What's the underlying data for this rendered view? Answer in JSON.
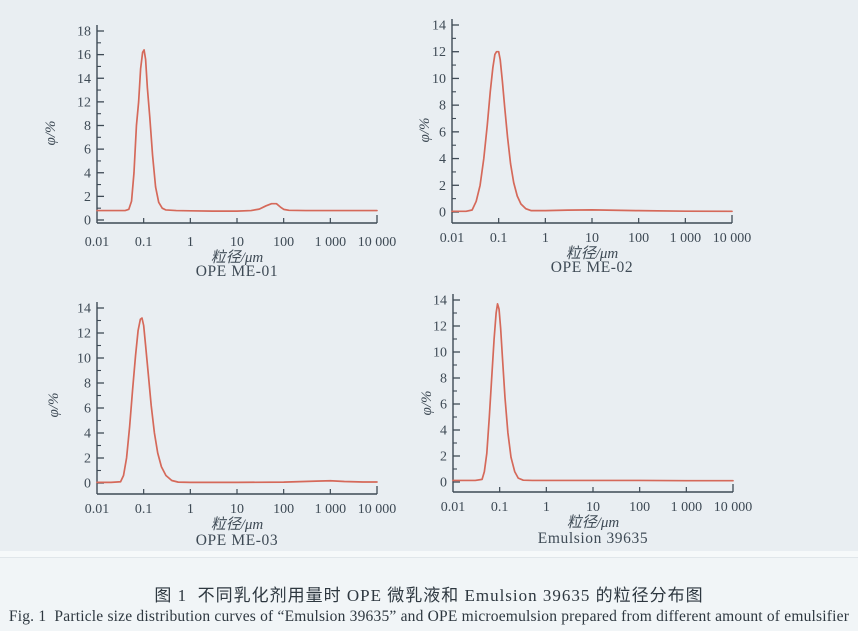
{
  "page": {
    "background": "#e9eef2",
    "ink_color": "#3e4a55",
    "curve_color": "#d5695a",
    "caption_zh": "图 1  不同乳化剂用量时 OPE 微乳液和 Emulsion 39635 的粒径分布图",
    "caption_en": "Fig. 1  Particle size distribution curves of “Emulsion 39635” and OPE microemulsion prepared from different amount of emulsifier"
  },
  "chart_data": [
    {
      "type": "line",
      "title": "OPE ME-01",
      "xlabel": "粒径/μm",
      "ylabel": "φ/%",
      "x_scale": "log",
      "xlim": [
        0.01,
        10000
      ],
      "x_tick_labels": [
        "0.01",
        "0.1",
        "1",
        "10",
        "100",
        "1 000",
        "10 000"
      ],
      "y_tick_labels": [
        "0",
        "2",
        "4",
        "6",
        "8",
        "12",
        "14",
        "16",
        "18"
      ],
      "y_tick_values": [
        0,
        2,
        4,
        6,
        8,
        12,
        14,
        16,
        18
      ],
      "grid": false,
      "legend": "none",
      "line_color": "#d5695a",
      "series": [
        {
          "name": "OPE ME-01",
          "points": [
            [
              0.01,
              0.8
            ],
            [
              0.02,
              0.8
            ],
            [
              0.04,
              0.8
            ],
            [
              0.048,
              0.9
            ],
            [
              0.055,
              1.6
            ],
            [
              0.062,
              4.0
            ],
            [
              0.07,
              8.0
            ],
            [
              0.078,
              12.0
            ],
            [
              0.086,
              14.8
            ],
            [
              0.095,
              16.2
            ],
            [
              0.102,
              16.4
            ],
            [
              0.11,
              15.6
            ],
            [
              0.12,
              13.2
            ],
            [
              0.135,
              9.5
            ],
            [
              0.155,
              5.5
            ],
            [
              0.18,
              2.8
            ],
            [
              0.21,
              1.5
            ],
            [
              0.25,
              1.0
            ],
            [
              0.3,
              0.85
            ],
            [
              0.5,
              0.8
            ],
            [
              1,
              0.78
            ],
            [
              3,
              0.75
            ],
            [
              10,
              0.75
            ],
            [
              20,
              0.8
            ],
            [
              30,
              0.92
            ],
            [
              42,
              1.2
            ],
            [
              55,
              1.38
            ],
            [
              70,
              1.38
            ],
            [
              85,
              1.1
            ],
            [
              100,
              0.9
            ],
            [
              130,
              0.82
            ],
            [
              300,
              0.8
            ],
            [
              1000,
              0.8
            ],
            [
              3000,
              0.8
            ],
            [
              10000,
              0.8
            ]
          ]
        }
      ]
    },
    {
      "type": "line",
      "title": "OPE ME-02",
      "xlabel": "粒径/μm",
      "ylabel": "φ/%",
      "x_scale": "log",
      "xlim": [
        0.01,
        10000
      ],
      "x_tick_labels": [
        "0.01",
        "0.1",
        "1",
        "10",
        "100",
        "1 000",
        "10 000"
      ],
      "y_tick_labels": [
        "0",
        "2",
        "4",
        "6",
        "8",
        "10",
        "12",
        "14"
      ],
      "y_tick_values": [
        0,
        2,
        4,
        6,
        8,
        10,
        12,
        14
      ],
      "grid": false,
      "legend": "none",
      "line_color": "#d5695a",
      "series": [
        {
          "name": "OPE ME-02",
          "points": [
            [
              0.01,
              0.05
            ],
            [
              0.02,
              0.05
            ],
            [
              0.027,
              0.15
            ],
            [
              0.033,
              0.8
            ],
            [
              0.04,
              2.0
            ],
            [
              0.048,
              4.0
            ],
            [
              0.057,
              6.5
            ],
            [
              0.066,
              9.0
            ],
            [
              0.075,
              10.8
            ],
            [
              0.083,
              11.8
            ],
            [
              0.09,
              12.0
            ],
            [
              0.1,
              12.0
            ],
            [
              0.108,
              11.4
            ],
            [
              0.12,
              9.8
            ],
            [
              0.135,
              7.8
            ],
            [
              0.155,
              5.6
            ],
            [
              0.18,
              3.6
            ],
            [
              0.21,
              2.2
            ],
            [
              0.25,
              1.2
            ],
            [
              0.3,
              0.6
            ],
            [
              0.38,
              0.25
            ],
            [
              0.5,
              0.1
            ],
            [
              1,
              0.1
            ],
            [
              3,
              0.14
            ],
            [
              10,
              0.16
            ],
            [
              30,
              0.13
            ],
            [
              100,
              0.1
            ],
            [
              1000,
              0.06
            ],
            [
              10000,
              0.05
            ]
          ]
        }
      ]
    },
    {
      "type": "line",
      "title": "OPE ME-03",
      "xlabel": "粒径/μm",
      "ylabel": "φ/%",
      "x_scale": "log",
      "xlim": [
        0.01,
        10000
      ],
      "x_tick_labels": [
        "0.01",
        "0.1",
        "1",
        "10",
        "100",
        "1 000",
        "10 000"
      ],
      "y_tick_labels": [
        "0",
        "2",
        "4",
        "6",
        "8",
        "10",
        "12",
        "14"
      ],
      "y_tick_values": [
        0,
        2,
        4,
        6,
        8,
        10,
        12,
        14
      ],
      "grid": false,
      "legend": "none",
      "line_color": "#d5695a",
      "series": [
        {
          "name": "OPE ME-03",
          "points": [
            [
              0.01,
              0.05
            ],
            [
              0.02,
              0.05
            ],
            [
              0.032,
              0.1
            ],
            [
              0.037,
              0.6
            ],
            [
              0.043,
              2.0
            ],
            [
              0.05,
              4.5
            ],
            [
              0.058,
              7.5
            ],
            [
              0.067,
              10.2
            ],
            [
              0.076,
              12.2
            ],
            [
              0.085,
              13.1
            ],
            [
              0.092,
              13.2
            ],
            [
              0.1,
              12.6
            ],
            [
              0.11,
              11.0
            ],
            [
              0.125,
              8.8
            ],
            [
              0.145,
              6.2
            ],
            [
              0.17,
              4.0
            ],
            [
              0.2,
              2.4
            ],
            [
              0.24,
              1.3
            ],
            [
              0.3,
              0.6
            ],
            [
              0.4,
              0.2
            ],
            [
              0.55,
              0.07
            ],
            [
              1,
              0.05
            ],
            [
              10,
              0.05
            ],
            [
              100,
              0.07
            ],
            [
              500,
              0.15
            ],
            [
              1000,
              0.18
            ],
            [
              2000,
              0.12
            ],
            [
              5000,
              0.08
            ],
            [
              10000,
              0.08
            ]
          ]
        }
      ]
    },
    {
      "type": "line",
      "title": "Emulsion 39635",
      "xlabel": "粒径/μm",
      "ylabel": "φ/%",
      "x_scale": "log",
      "xlim": [
        0.01,
        10000
      ],
      "x_tick_labels": [
        "0.01",
        "0.1",
        "1",
        "10",
        "100",
        "1 000",
        "10 000"
      ],
      "y_tick_labels": [
        "0",
        "2",
        "4",
        "6",
        "8",
        "10",
        "12",
        "14"
      ],
      "y_tick_values": [
        0,
        2,
        4,
        6,
        8,
        10,
        12,
        14
      ],
      "grid": false,
      "legend": "none",
      "line_color": "#d5695a",
      "series": [
        {
          "name": "Emulsion 39635",
          "points": [
            [
              0.01,
              0.12
            ],
            [
              0.03,
              0.12
            ],
            [
              0.042,
              0.2
            ],
            [
              0.047,
              0.8
            ],
            [
              0.053,
              2.2
            ],
            [
              0.06,
              5.0
            ],
            [
              0.068,
              8.2
            ],
            [
              0.076,
              11.0
            ],
            [
              0.084,
              13.0
            ],
            [
              0.09,
              13.7
            ],
            [
              0.097,
              13.3
            ],
            [
              0.105,
              11.8
            ],
            [
              0.115,
              9.5
            ],
            [
              0.13,
              6.5
            ],
            [
              0.15,
              3.8
            ],
            [
              0.175,
              1.9
            ],
            [
              0.21,
              0.8
            ],
            [
              0.25,
              0.3
            ],
            [
              0.32,
              0.14
            ],
            [
              0.5,
              0.12
            ],
            [
              1,
              0.12
            ],
            [
              10,
              0.12
            ],
            [
              100,
              0.12
            ],
            [
              1000,
              0.1
            ],
            [
              10000,
              0.1
            ]
          ]
        }
      ]
    }
  ]
}
